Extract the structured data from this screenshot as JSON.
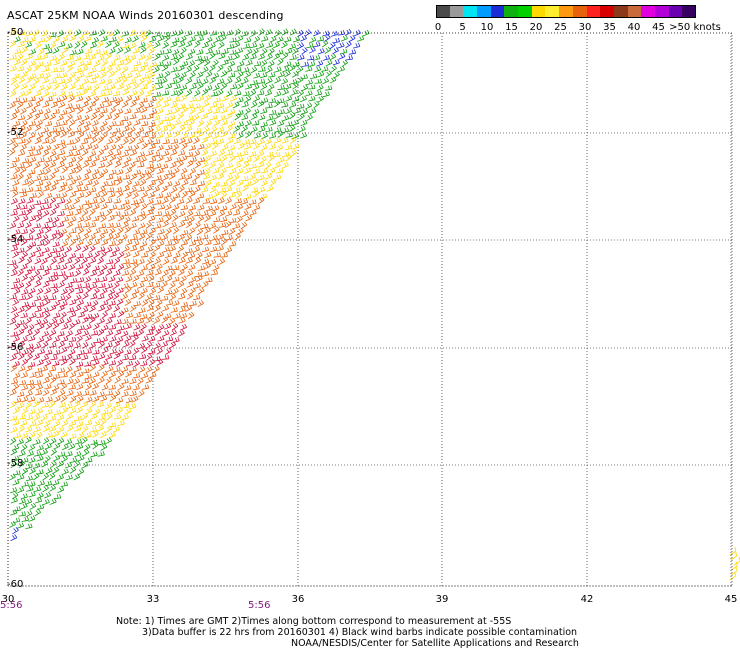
{
  "title": "ASCAT 25KM NOAA Winds 20160301 descending",
  "colorbar": {
    "labels": [
      "0",
      "5",
      "10",
      "15",
      "20",
      "25",
      "30",
      "35",
      "40",
      "45",
      ">50 knots"
    ],
    "colors": [
      "#4a4a4a",
      "#9a9a9a",
      "#00e5f0",
      "#009cff",
      "#1c2bd8",
      "#10b010",
      "#00d000",
      "#ffd800",
      "#ffee30",
      "#ff9a10",
      "#e8620c",
      "#ff2020",
      "#d80000",
      "#8a3a1a",
      "#c86a3a",
      "#e000e0",
      "#b400d8",
      "#6a00b0",
      "#380060"
    ]
  },
  "axes": {
    "lon_labels": [
      "30",
      "33",
      "36",
      "39",
      "42",
      "45"
    ],
    "lat_labels": [
      "-50",
      "-52",
      "-54",
      "-56",
      "-58",
      "-60"
    ]
  },
  "times": [
    "5:56",
    "5:56"
  ],
  "notes": [
    "Note: 1) Times are GMT 2)Times along bottom correspond to measurement at -55S",
    "3)Data buffer is 22 hrs from 20160301 4) Black wind barbs indicate possible contamination",
    "NOAA/NESDIS/Center for Satellite Applications and Research"
  ],
  "wind_colors": {
    "calm": "#1c2bd8",
    "light": "#10a010",
    "moderate": "#ffd800",
    "fresh": "#e8620c",
    "strong": "#d0103a"
  }
}
